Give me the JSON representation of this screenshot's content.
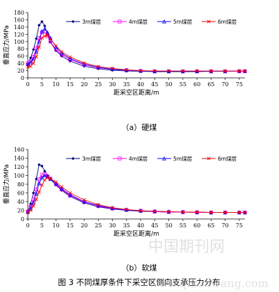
{
  "figure_caption": "图 3  不同煤厚条件下采空区侧向支承压力分布",
  "watermark": {
    "line1": "中国期刊网",
    "line2": "www.qikanwang.com"
  },
  "colors": {
    "s1": "#000080",
    "s2": "#ff00ff",
    "s3": "#0000ff",
    "s4": "#ff0000"
  },
  "chart_data": [
    {
      "type": "line",
      "caption": "（a）硬煤",
      "xlabel": "距采空区距离/m",
      "ylabel": "垂直应力/MPa",
      "xlim": [
        0,
        77
      ],
      "ylim": [
        0,
        180
      ],
      "xticks": [
        0,
        5,
        10,
        15,
        20,
        25,
        30,
        35,
        40,
        45,
        50,
        55,
        60,
        65,
        70,
        75
      ],
      "yticks": [
        0,
        20,
        40,
        60,
        80,
        100,
        120,
        140,
        160,
        180
      ],
      "legend_position": "top",
      "series": [
        {
          "name": "3m煤层",
          "marker": "diamond",
          "x": [
            0,
            1,
            2,
            3,
            4,
            5,
            6,
            7,
            8,
            10,
            12,
            15,
            20,
            25,
            30,
            35,
            40,
            45,
            50,
            55,
            60,
            65,
            70,
            75,
            77
          ],
          "y": [
            35,
            55,
            78,
            108,
            145,
            155,
            143,
            118,
            99,
            75,
            60,
            46,
            32,
            25,
            21,
            19,
            18,
            17,
            17,
            17,
            17,
            18,
            18,
            18,
            18
          ]
        },
        {
          "name": "4m煤层",
          "marker": "square",
          "x": [
            0,
            1,
            2,
            3,
            4,
            5,
            6,
            7,
            8,
            10,
            12,
            15,
            20,
            25,
            30,
            35,
            40,
            45,
            50,
            55,
            60,
            65,
            70,
            75,
            77
          ],
          "y": [
            40,
            45,
            58,
            82,
            110,
            125,
            127,
            115,
            100,
            78,
            64,
            50,
            36,
            28,
            24,
            21,
            19,
            18,
            18,
            18,
            18,
            18,
            18,
            18,
            18
          ]
        },
        {
          "name": "5m煤层",
          "marker": "triangle",
          "x": [
            0,
            1,
            2,
            3,
            4,
            5,
            6,
            7,
            8,
            10,
            12,
            15,
            20,
            25,
            30,
            35,
            40,
            45,
            50,
            55,
            60,
            65,
            70,
            75,
            77
          ],
          "y": [
            38,
            42,
            52,
            72,
            100,
            128,
            135,
            125,
            110,
            85,
            68,
            53,
            38,
            29,
            24,
            21,
            19,
            18,
            18,
            18,
            18,
            18,
            18,
            19,
            19
          ]
        },
        {
          "name": "6m煤层",
          "marker": "x",
          "x": [
            0,
            1,
            2,
            3,
            4,
            5,
            6,
            7,
            8,
            10,
            12,
            15,
            20,
            25,
            30,
            35,
            40,
            45,
            50,
            55,
            60,
            65,
            70,
            75,
            77
          ],
          "y": [
            30,
            32,
            40,
            58,
            85,
            110,
            115,
            118,
            107,
            88,
            72,
            57,
            41,
            31,
            26,
            22,
            20,
            19,
            19,
            19,
            19,
            19,
            19,
            19,
            19
          ]
        }
      ]
    },
    {
      "type": "line",
      "caption": "（b）软煤",
      "xlabel": "距采空区距离/m",
      "ylabel": "垂直应力/MPa",
      "xlim": [
        0,
        77
      ],
      "ylim": [
        0,
        160
      ],
      "xticks": [
        0,
        5,
        10,
        15,
        20,
        25,
        30,
        35,
        40,
        45,
        50,
        55,
        60,
        65,
        70,
        75
      ],
      "yticks": [
        0,
        20,
        40,
        60,
        80,
        100,
        120,
        140,
        160
      ],
      "legend_position": "top",
      "series": [
        {
          "name": "3m煤层",
          "marker": "diamond",
          "x": [
            0,
            1,
            2,
            3,
            4,
            5,
            6,
            7,
            8,
            10,
            12,
            15,
            20,
            25,
            30,
            35,
            40,
            45,
            50,
            55,
            60,
            65,
            70,
            75,
            77
          ],
          "y": [
            17,
            35,
            60,
            92,
            125,
            122,
            110,
            100,
            92,
            78,
            66,
            52,
            37,
            28,
            23,
            20,
            18,
            17,
            16,
            16,
            15,
            15,
            15,
            15,
            15
          ]
        },
        {
          "name": "4m煤层",
          "marker": "square",
          "x": [
            0,
            1,
            2,
            3,
            4,
            5,
            6,
            7,
            8,
            10,
            12,
            15,
            20,
            25,
            30,
            35,
            40,
            45,
            50,
            55,
            60,
            65,
            70,
            75,
            77
          ],
          "y": [
            17,
            28,
            45,
            68,
            92,
            102,
            103,
            98,
            93,
            80,
            68,
            54,
            39,
            30,
            24,
            21,
            19,
            17,
            16,
            16,
            15,
            15,
            15,
            15,
            15
          ]
        },
        {
          "name": "5m煤层",
          "marker": "triangle",
          "x": [
            0,
            1,
            2,
            3,
            4,
            5,
            6,
            7,
            8,
            10,
            12,
            15,
            20,
            25,
            30,
            35,
            40,
            45,
            50,
            55,
            60,
            65,
            70,
            75,
            77
          ],
          "y": [
            16,
            24,
            38,
            58,
            82,
            95,
            100,
            97,
            92,
            82,
            70,
            56,
            40,
            31,
            25,
            21,
            19,
            18,
            17,
            16,
            16,
            15,
            15,
            15,
            15
          ]
        },
        {
          "name": "6m煤层",
          "marker": "x",
          "x": [
            0,
            1,
            2,
            3,
            4,
            5,
            6,
            7,
            8,
            10,
            12,
            15,
            20,
            25,
            30,
            35,
            40,
            45,
            50,
            55,
            60,
            65,
            70,
            75,
            77
          ],
          "y": [
            15,
            20,
            30,
            45,
            62,
            78,
            90,
            95,
            93,
            85,
            74,
            60,
            44,
            33,
            26,
            22,
            19,
            18,
            17,
            16,
            16,
            15,
            15,
            15,
            15
          ]
        }
      ]
    }
  ]
}
